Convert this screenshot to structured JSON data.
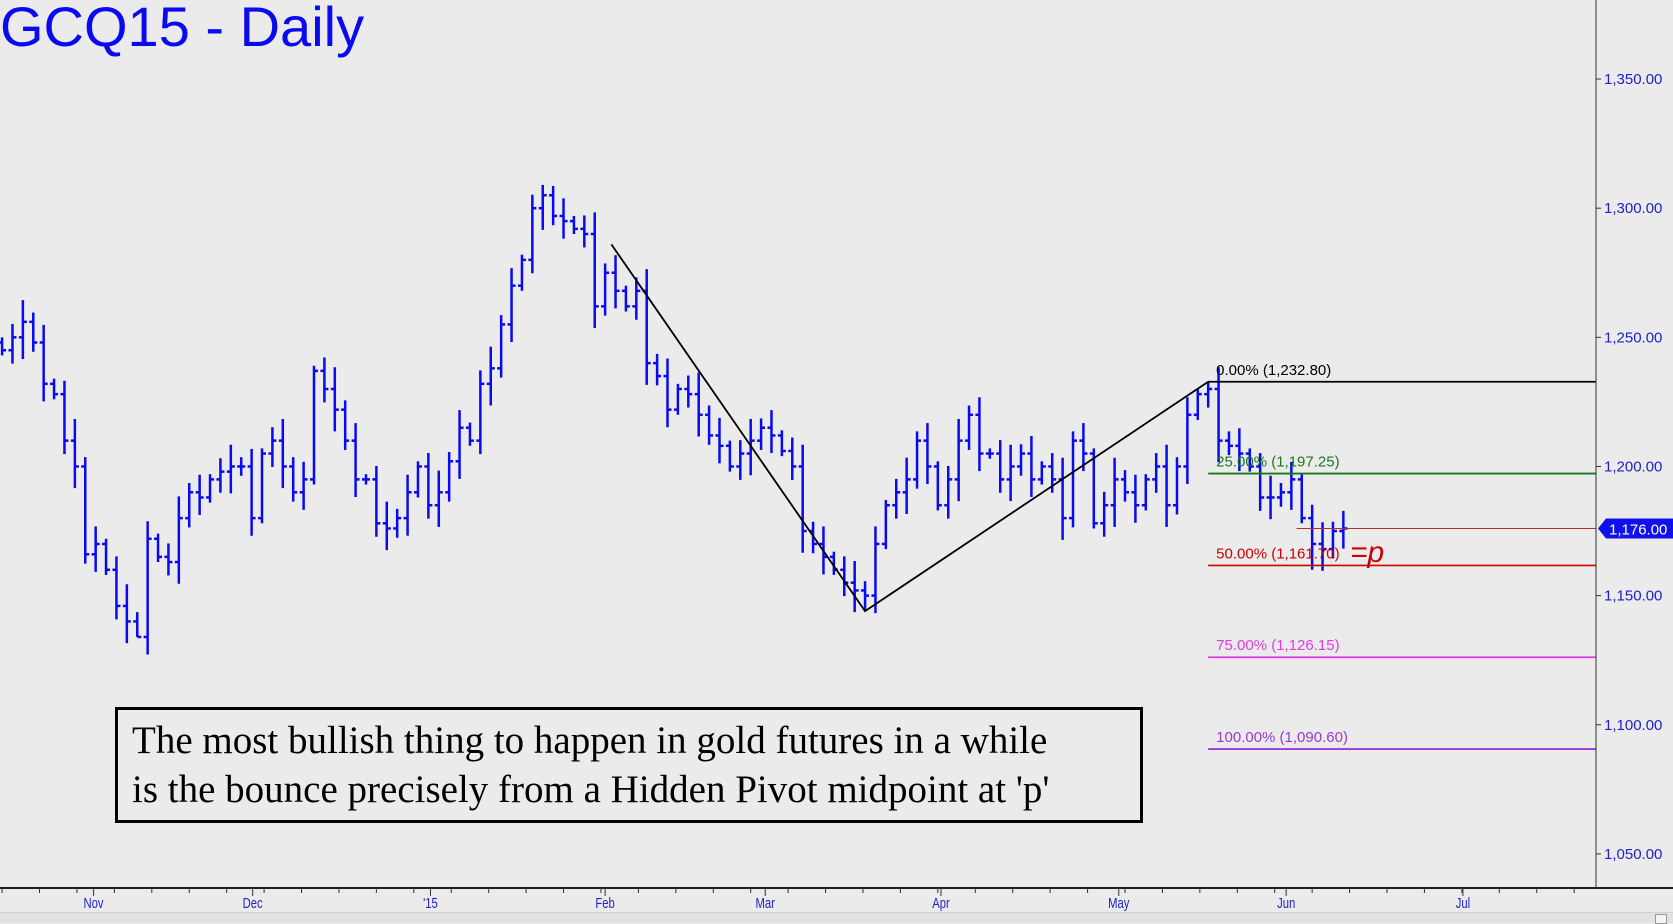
{
  "title": "GCQ15 - Daily",
  "annotation": {
    "line1": "The most bullish thing to happen in gold futures in a while",
    "line2": "is the bounce precisely from a Hidden Pivot midpoint at 'p'",
    "marker": "=p"
  },
  "colors": {
    "bars": "#0a0aee",
    "axis_text": "#2020cc",
    "trend": "#000000"
  },
  "chart_data": {
    "type": "ohlc",
    "title": "GCQ15 - Daily",
    "xlabel": "",
    "ylabel": "",
    "ylim": [
      1036.8,
      1380.6
    ],
    "xlim": [
      -0.2,
      153.3
    ],
    "grid": false,
    "close": [
      1245,
      1250,
      1256,
      1248,
      1232,
      1228,
      1210,
      1200,
      1166,
      1170,
      1160,
      1146,
      1140,
      1134,
      1172,
      1165,
      1163,
      1180,
      1190,
      1188,
      1195,
      1198,
      1200,
      1200,
      1180,
      1205,
      1210,
      1200,
      1190,
      1195,
      1237,
      1230,
      1222,
      1210,
      1195,
      1195,
      1178,
      1176,
      1180,
      1190,
      1200,
      1185,
      1190,
      1202,
      1215,
      1210,
      1232,
      1238,
      1255,
      1270,
      1280,
      1300,
      1305,
      1297,
      1295,
      1292,
      1290,
      1262,
      1275,
      1268,
      1262,
      1268,
      1240,
      1235,
      1222,
      1230,
      1228,
      1220,
      1212,
      1208,
      1200,
      1205,
      1210,
      1215,
      1212,
      1206,
      1200,
      1175,
      1170,
      1165,
      1160,
      1155,
      1152,
      1150,
      1170,
      1185,
      1190,
      1195,
      1210,
      1200,
      1185,
      1195,
      1210,
      1220,
      1205,
      1205,
      1195,
      1200,
      1205,
      1195,
      1200,
      1195,
      1180,
      1210,
      1205,
      1178,
      1185,
      1195,
      1190,
      1185,
      1195,
      1200,
      1185,
      1200,
      1220,
      1228,
      1230,
      1210,
      1208,
      1205,
      1200,
      1188,
      1188,
      1190,
      1195,
      1180,
      1170,
      1168,
      1175,
      1176
    ],
    "extremes": [
      {
        "bar": 13,
        "low": 1134
      },
      {
        "bar": 52,
        "high": 1309
      },
      {
        "bar": 83,
        "low": 1144
      },
      {
        "bar": 116,
        "high": 1232.8
      },
      {
        "bar": 126,
        "low": 1160
      }
    ],
    "x_ticks": [
      {
        "label": "Nov",
        "bar": 8.8
      },
      {
        "label": "Dec",
        "bar": 24.1
      },
      {
        "label": "'15",
        "bar": 41.2
      },
      {
        "label": "Feb",
        "bar": 58
      },
      {
        "label": "Mar",
        "bar": 73.4
      },
      {
        "label": "Apr",
        "bar": 90.3
      },
      {
        "label": "May",
        "bar": 107.4
      },
      {
        "label": "Jun",
        "bar": 123.5
      },
      {
        "label": "Jul",
        "bar": 140.5
      }
    ],
    "y_ticks": [
      {
        "label": "1,350.00",
        "value": 1350
      },
      {
        "label": "1,300.00",
        "value": 1300
      },
      {
        "label": "1,250.00",
        "value": 1250
      },
      {
        "label": "1,200.00",
        "value": 1200
      },
      {
        "label": "1,150.00",
        "value": 1150
      },
      {
        "label": "1,100.00",
        "value": 1100
      },
      {
        "label": "1,050.00",
        "value": 1050
      }
    ],
    "last_price": {
      "label": "1,176.00",
      "value": 1176,
      "from_bar": 124.5
    },
    "trendline": [
      {
        "bar": 58.6,
        "price": 1286
      },
      {
        "bar": 83,
        "price": 1144
      },
      {
        "bar": 116,
        "price": 1232.8
      }
    ],
    "fib_levels": [
      {
        "label": "0.00% (1,232.80)",
        "value": 1232.8,
        "color": "#000000"
      },
      {
        "label": "25.00% (1,197.25)",
        "value": 1197.25,
        "color": "#1a7a1a"
      },
      {
        "label": "50.00% (1,161.70)",
        "value": 1161.7,
        "color": "#cc0000"
      },
      {
        "label": "75.00% (1,126.15)",
        "value": 1126.15,
        "color": "#e23be2"
      },
      {
        "label": "100.00% (1,090.60)",
        "value": 1090.6,
        "color": "#9a3ad6"
      }
    ],
    "fib_start_bar": 116
  }
}
